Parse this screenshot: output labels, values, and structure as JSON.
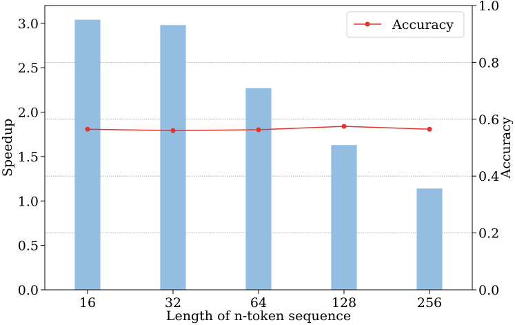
{
  "chart_data": {
    "type": "bar",
    "categories": [
      "16",
      "32",
      "64",
      "128",
      "256"
    ],
    "xlabel": "Length of n-token sequence",
    "ylabel": "Speedup",
    "y2label": "Accuracy",
    "ylim": [
      0,
      3.2
    ],
    "y2lim": [
      0,
      1.0
    ],
    "yticks": [
      "0.0",
      "0.5",
      "1.0",
      "1.5",
      "2.0",
      "2.5",
      "3.0"
    ],
    "y2ticks": [
      "0.0",
      "0.2",
      "0.4",
      "0.6",
      "0.8",
      "1.0"
    ],
    "grid": "horizontal dotted at right-axis ticks",
    "legend_position": "top-right",
    "series": [
      {
        "kind": "bar",
        "axis": "left",
        "values": [
          3.04,
          2.98,
          2.27,
          1.63,
          1.14
        ],
        "color": "#94bde2"
      },
      {
        "kind": "line",
        "axis": "right",
        "name": "Accuracy",
        "values": [
          0.565,
          0.56,
          0.563,
          0.575,
          0.565
        ],
        "color": "#e0352b"
      }
    ]
  }
}
